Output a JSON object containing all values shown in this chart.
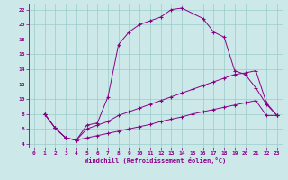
{
  "xlabel": "Windchill (Refroidissement éolien,°C)",
  "bg_color": "#cce8e8",
  "line_color": "#880088",
  "grid_color": "#99cccc",
  "xlim": [
    -0.5,
    23.5
  ],
  "ylim": [
    3.5,
    22.8
  ],
  "xticks": [
    0,
    1,
    2,
    3,
    4,
    5,
    6,
    7,
    8,
    9,
    10,
    11,
    12,
    13,
    14,
    15,
    16,
    17,
    18,
    19,
    20,
    21,
    22,
    23
  ],
  "yticks": [
    4,
    6,
    8,
    10,
    12,
    14,
    16,
    18,
    20,
    22
  ],
  "line1_x": [
    1,
    2,
    3,
    4,
    5,
    6,
    7,
    8,
    9,
    10,
    11,
    12,
    13,
    14,
    15,
    16,
    17,
    18,
    19,
    20,
    21,
    22,
    23
  ],
  "line1_y": [
    8.0,
    6.1,
    4.8,
    4.5,
    6.5,
    6.8,
    10.3,
    17.3,
    19.0,
    20.0,
    20.5,
    21.0,
    22.0,
    22.2,
    21.5,
    20.8,
    19.0,
    18.3,
    13.8,
    13.3,
    11.5,
    9.3,
    7.8
  ],
  "line2_x": [
    1,
    2,
    3,
    4,
    5,
    6,
    7,
    8,
    9,
    10,
    11,
    12,
    13,
    14,
    15,
    16,
    17,
    18,
    19,
    20,
    21,
    22,
    23
  ],
  "line2_y": [
    8.0,
    6.1,
    4.8,
    4.5,
    6.0,
    6.5,
    7.0,
    7.8,
    8.3,
    8.8,
    9.3,
    9.8,
    10.3,
    10.8,
    11.3,
    11.8,
    12.3,
    12.8,
    13.3,
    13.5,
    13.8,
    9.5,
    7.8
  ],
  "line3_x": [
    1,
    2,
    3,
    4,
    5,
    6,
    7,
    8,
    9,
    10,
    11,
    12,
    13,
    14,
    15,
    16,
    17,
    18,
    19,
    20,
    21,
    22,
    23
  ],
  "line3_y": [
    8.0,
    6.1,
    4.8,
    4.5,
    4.8,
    5.1,
    5.4,
    5.7,
    6.0,
    6.3,
    6.6,
    7.0,
    7.3,
    7.6,
    8.0,
    8.3,
    8.6,
    8.9,
    9.2,
    9.5,
    9.8,
    7.8,
    7.8
  ]
}
